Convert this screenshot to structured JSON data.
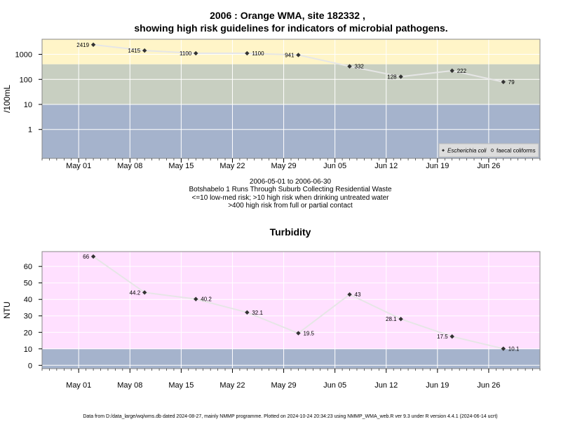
{
  "title_line1": "2006 : Orange WMA, site 182332 ,",
  "title_line2": "showing high risk guidelines for indicators of microbial pathogens.",
  "notes": [
    "2006-05-01 to 2006-06-30",
    "Botshabelo 1 Runs Through Suburb Collecting Residential Waste",
    "<=10 low-med risk; >10 high risk when drinking untreated water",
    ">400 high risk from full or partial contact"
  ],
  "footer": "Data from D:/data_large/wq/wms.db dated 2024-08-27, mainly NMMP programme. Plotted on 2024-10-24 20:34:23 using NMMP_WMA_web.R ver 9.3 under R version 4.4.1 (2024-06-14 ucrt)",
  "colors": {
    "high_band": "#fff5c8",
    "mid_band": "#c8cfc1",
    "low_band": "#a5b3cc",
    "turb_high": "#ffe0ff",
    "turb_low": "#a5b3cc",
    "line": "#e6e6e6",
    "grid": "#ffffff"
  },
  "chart_data": [
    {
      "type": "line",
      "title": "",
      "ylabel": "/100mL",
      "y_scale": "log10",
      "ylim": [
        0.07,
        4000
      ],
      "yticks": [
        1,
        10,
        100,
        1000
      ],
      "ytick_labels": [
        "1",
        "10",
        "100",
        "1000"
      ],
      "xlim": [
        "2006-04-26",
        "2006-07-03"
      ],
      "xticks": [
        "2006-05-01",
        "2006-05-08",
        "2006-05-15",
        "2006-05-22",
        "2006-05-29",
        "2006-06-05",
        "2006-06-12",
        "2006-06-19",
        "2006-06-26"
      ],
      "xtick_labels": [
        "May 01",
        "May 08",
        "May 15",
        "May 22",
        "May 29",
        "Jun 05",
        "Jun 12",
        "Jun 19",
        "Jun 26"
      ],
      "bands": [
        {
          "from": 400,
          "to": 4000,
          "color": "#fff5c8"
        },
        {
          "from": 10,
          "to": 400,
          "color": "#c8cfc1"
        },
        {
          "from": 0.07,
          "to": 10,
          "color": "#a5b3cc"
        }
      ],
      "series": [
        {
          "name": "Escherichia coli",
          "x": [
            "2006-05-03",
            "2006-05-10",
            "2006-05-17",
            "2006-05-24",
            "2006-05-31",
            "2006-06-07",
            "2006-06-14",
            "2006-06-21",
            "2006-06-28"
          ],
          "values": [
            2419,
            1415,
            1100,
            1100,
            941,
            332,
            128,
            222,
            79
          ],
          "labels": [
            "2419",
            "1415",
            "1100",
            "1100",
            "941",
            "332",
            "128",
            "222",
            "79"
          ],
          "label_side": [
            "left",
            "left",
            "left",
            "right",
            "left",
            "right",
            "left",
            "right",
            "right"
          ]
        }
      ],
      "legend": [
        {
          "symbol": "diamond",
          "label": "Escherichia coli"
        },
        {
          "symbol": "circle",
          "label": "faecal coliforms"
        }
      ],
      "legend_position": "bottom-right",
      "grid": true
    },
    {
      "type": "line",
      "title": "Turbidity",
      "ylabel": "NTU",
      "ylim": [
        -2,
        69
      ],
      "yticks": [
        0,
        10,
        20,
        30,
        40,
        50,
        60
      ],
      "ytick_labels": [
        "0",
        "10",
        "20",
        "30",
        "40",
        "50",
        "60"
      ],
      "xlim": [
        "2006-04-26",
        "2006-07-03"
      ],
      "xticks": [
        "2006-05-01",
        "2006-05-08",
        "2006-05-15",
        "2006-05-22",
        "2006-05-29",
        "2006-06-05",
        "2006-06-12",
        "2006-06-19",
        "2006-06-26"
      ],
      "xtick_labels": [
        "May 01",
        "May 08",
        "May 15",
        "May 22",
        "May 29",
        "Jun 05",
        "Jun 12",
        "Jun 19",
        "Jun 26"
      ],
      "bands": [
        {
          "from": 10,
          "to": 69,
          "color": "#ffe0ff"
        },
        {
          "from": -2,
          "to": 10,
          "color": "#a5b3cc"
        }
      ],
      "series": [
        {
          "name": "",
          "x": [
            "2006-05-03",
            "2006-05-10",
            "2006-05-17",
            "2006-05-24",
            "2006-05-31",
            "2006-06-07",
            "2006-06-14",
            "2006-06-21",
            "2006-06-28"
          ],
          "values": [
            66,
            44.2,
            40.2,
            32.1,
            19.5,
            43,
            28.1,
            17.5,
            10.1
          ],
          "labels": [
            "66",
            "44.2",
            "40.2",
            "32.1",
            "19.5",
            "43",
            "28.1",
            "17.5",
            "10.1"
          ],
          "label_side": [
            "left",
            "left",
            "right",
            "right",
            "right",
            "right",
            "left",
            "left",
            "right"
          ]
        }
      ],
      "grid": true
    }
  ]
}
